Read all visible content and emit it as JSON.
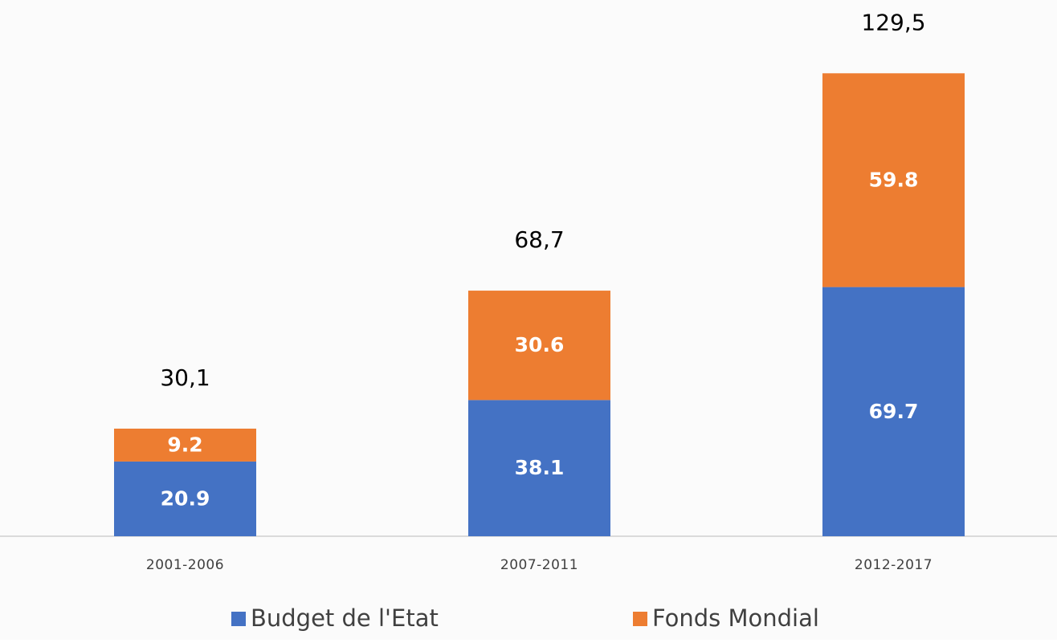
{
  "chart_data": {
    "type": "stacked_bar",
    "categories": [
      "2001-2006",
      "2007-2011",
      "2012-2017"
    ],
    "series": [
      {
        "name": "Budget de l'Etat",
        "color": "#4472c4",
        "values": [
          20.9,
          38.1,
          69.7
        ]
      },
      {
        "name": "Fonds Mondial",
        "color": "#ed7d31",
        "values": [
          9.2,
          30.6,
          59.8
        ]
      }
    ],
    "totals": {
      "values": [
        30.1,
        68.7,
        129.5
      ],
      "value_labels": [
        "30,1",
        "68,7",
        "129,5"
      ]
    },
    "ylim": [
      0,
      150
    ]
  }
}
